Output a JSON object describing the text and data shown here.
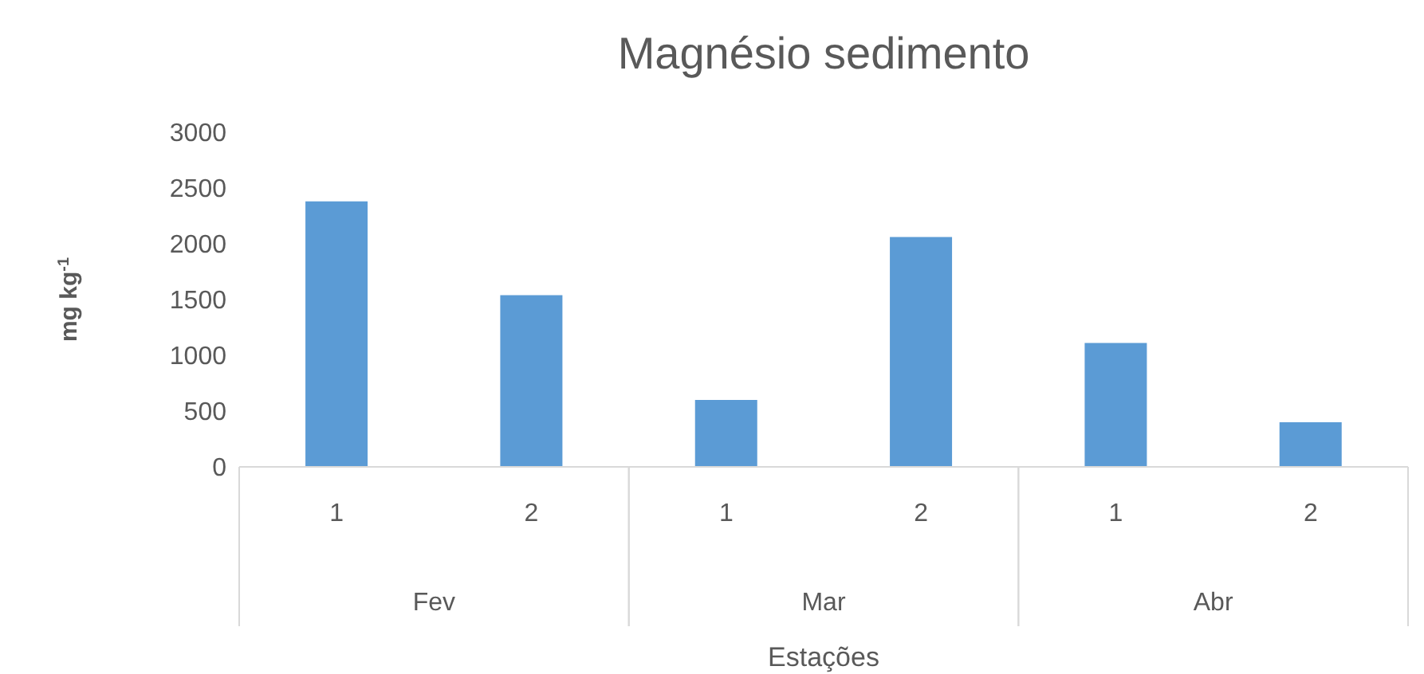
{
  "chart_data": {
    "type": "bar",
    "title": "Magnésio sedimento",
    "xlabel": "Estações",
    "ylabel": "mg kg$^{-1}$",
    "categories": [
      "1",
      "2",
      "1",
      "2",
      "1",
      "2"
    ],
    "annotations": [
      "Fev",
      "Mar",
      "Abr"
    ],
    "series": [
      {
        "color": "#5b9bd5",
        "values": [
          2380,
          1540,
          600,
          2060,
          1110,
          400
        ]
      }
    ],
    "ylim": [
      0,
      3000
    ],
    "yticks": [
      0,
      500,
      1000,
      1500,
      2000,
      2500,
      3000
    ],
    "grid": false,
    "legend": false
  }
}
